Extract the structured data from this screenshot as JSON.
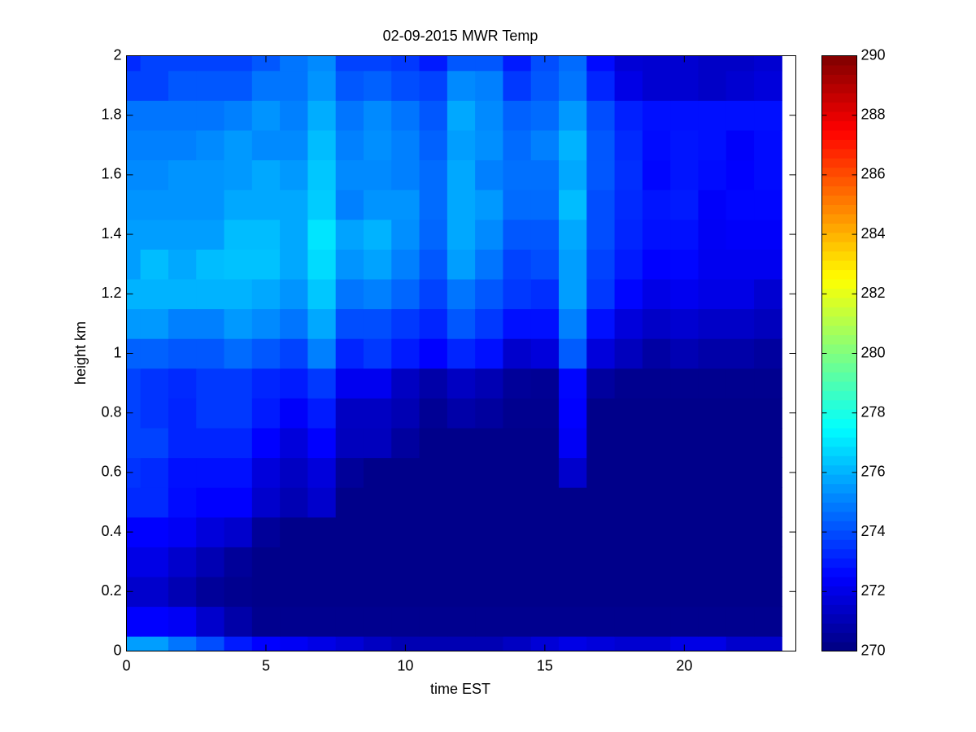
{
  "chart_data": {
    "type": "heatmap",
    "title": "02-09-2015 MWR Temp",
    "x_label": "time EST",
    "y_label": "height km",
    "colormap": "jet",
    "xlim": [
      0,
      24
    ],
    "ylim": [
      0,
      2
    ],
    "xticks": [
      0,
      5,
      10,
      15,
      20
    ],
    "yticks": [
      0,
      0.2,
      0.4,
      0.6,
      0.8,
      1,
      1.2,
      1.4,
      1.6,
      1.8,
      2
    ],
    "clim": [
      270,
      290
    ],
    "cticks": [
      270,
      272,
      274,
      276,
      278,
      280,
      282,
      284,
      286,
      288,
      290
    ],
    "x_edges": [
      0,
      0.5,
      1.5,
      2.5,
      3.5,
      4.5,
      5.5,
      6.5,
      7.5,
      8.5,
      9.5,
      10.5,
      11.5,
      12.5,
      13.5,
      14.5,
      15.5,
      16.5,
      17.5,
      18.5,
      19.5,
      20.5,
      21.5,
      22.5,
      23.5
    ],
    "y_edges": [
      0,
      0.05,
      0.15,
      0.25,
      0.35,
      0.45,
      0.55,
      0.65,
      0.75,
      0.85,
      0.95,
      1.05,
      1.15,
      1.25,
      1.35,
      1.45,
      1.55,
      1.65,
      1.75,
      1.85,
      1.95,
      2
    ],
    "z": [
      [
        275.6,
        275.6,
        274.8,
        274,
        273,
        272.5,
        272.3,
        272,
        271.7,
        271.3,
        271,
        271,
        271,
        271,
        271.3,
        271.7,
        272,
        271.8,
        271.6,
        271.6,
        272,
        272,
        271.5,
        271.5
      ],
      [
        272.5,
        272.5,
        272.3,
        271.5,
        270.8,
        270.3,
        270.3,
        270.3,
        270.3,
        270.3,
        270.3,
        270.3,
        270.3,
        270.3,
        270.3,
        270.3,
        270.3,
        270.3,
        270.3,
        270.3,
        270.3,
        270.3,
        270.3,
        270.3
      ],
      [
        271.5,
        271.5,
        271,
        270.5,
        270.3,
        270.2,
        270.2,
        270.2,
        270.2,
        270.2,
        270.2,
        270.2,
        270.2,
        270.2,
        270.2,
        270.2,
        270.2,
        270.2,
        270.2,
        270.2,
        270.2,
        270.2,
        270.2,
        270.2
      ],
      [
        272,
        272,
        271.5,
        271,
        270.5,
        270.2,
        270.2,
        270.2,
        270.2,
        270.2,
        270.2,
        270.2,
        270.2,
        270.2,
        270.2,
        270.2,
        270.2,
        270.2,
        270.2,
        270.2,
        270.2,
        270.2,
        270.2,
        270.2
      ],
      [
        272.5,
        272.5,
        272.3,
        271.8,
        271.5,
        270.5,
        270.2,
        270.2,
        270.2,
        270.2,
        270.2,
        270.2,
        270.2,
        270.2,
        270.2,
        270.2,
        270.2,
        270.2,
        270.2,
        270.2,
        270.2,
        270.2,
        270.2,
        270.2
      ],
      [
        273.3,
        273.3,
        272.7,
        272.5,
        272.5,
        271.5,
        271,
        271.5,
        270.2,
        270.2,
        270.2,
        270.2,
        270.2,
        270.2,
        270.2,
        270.2,
        270.2,
        270.2,
        270.2,
        270.2,
        270.2,
        270.2,
        270.2,
        270.2
      ],
      [
        273.5,
        273.3,
        272.8,
        272.8,
        272.8,
        271.8,
        271.3,
        271.8,
        270.5,
        270.2,
        270.2,
        270.2,
        270.2,
        270.2,
        270.2,
        270.2,
        271.5,
        270.2,
        270.2,
        270.2,
        270.2,
        270.2,
        270.2,
        270.2
      ],
      [
        273.8,
        273.8,
        273.2,
        273.2,
        273.2,
        272.5,
        271.8,
        272.5,
        271.2,
        271.2,
        270.6,
        270.2,
        270.2,
        270.2,
        270.2,
        270.2,
        272.3,
        270.2,
        270.2,
        270.2,
        270.2,
        270.2,
        270.2,
        270.2
      ],
      [
        273.8,
        273.5,
        273.2,
        273.6,
        273.6,
        273,
        272.4,
        273,
        271.3,
        271.3,
        271,
        270.4,
        270.8,
        270.6,
        270.3,
        270.3,
        272.5,
        270.2,
        270.2,
        270.2,
        270.2,
        270.2,
        270.2,
        270.2
      ],
      [
        273.8,
        273.5,
        273.3,
        273.6,
        273.6,
        273.2,
        273,
        273.6,
        272.2,
        272.2,
        271.3,
        270.8,
        271.3,
        271,
        270.5,
        270.4,
        272.6,
        270.6,
        270.3,
        270.3,
        270.3,
        270.3,
        270.3,
        270.3
      ],
      [
        274.4,
        274.4,
        274.2,
        274.2,
        274.6,
        274.2,
        273.8,
        275,
        273.2,
        273.6,
        273,
        272.5,
        273.2,
        272.8,
        271.5,
        271.8,
        274.3,
        271.8,
        271.2,
        270.7,
        271,
        270.8,
        270.8,
        270.6
      ],
      [
        275.5,
        275.5,
        275,
        275,
        275.5,
        275.2,
        274.8,
        275.8,
        274,
        274,
        273.6,
        273.2,
        274.2,
        273.6,
        272.8,
        272.8,
        275,
        272.8,
        271.8,
        271.4,
        271.6,
        271.4,
        271.4,
        271.2
      ],
      [
        276,
        276,
        276,
        276,
        276,
        275.8,
        275.4,
        276.4,
        274.8,
        275,
        274.5,
        273.8,
        274.8,
        274.2,
        273.6,
        273.4,
        275.6,
        273.6,
        272.6,
        272,
        272.2,
        272,
        272,
        271.6
      ],
      [
        275.6,
        276.2,
        275.8,
        276.2,
        276.3,
        276.3,
        275.8,
        276.8,
        275.4,
        275.7,
        275,
        274.2,
        275.6,
        274.8,
        273.8,
        274,
        275.6,
        273.8,
        273,
        272.5,
        272.6,
        272.2,
        272.2,
        272.2
      ],
      [
        275.6,
        275.6,
        275.6,
        275.6,
        276.2,
        276.2,
        275.8,
        277,
        275.7,
        276,
        275.3,
        274.5,
        275.8,
        275.2,
        274.2,
        274.2,
        275.8,
        274,
        273.2,
        272.8,
        272.8,
        272.3,
        272.4,
        272.4
      ],
      [
        275.4,
        275.4,
        275.4,
        275.4,
        275.8,
        275.8,
        275.8,
        276.5,
        275,
        275.4,
        275.4,
        274.6,
        275.8,
        275.5,
        274.6,
        274.6,
        276.2,
        274,
        273.3,
        272.9,
        273,
        272.4,
        272.6,
        272.6
      ],
      [
        275.2,
        275.2,
        275.4,
        275.4,
        275.5,
        275.8,
        275.5,
        276.4,
        275.2,
        275.2,
        275,
        274.6,
        275.8,
        275,
        274.7,
        274.7,
        275.8,
        274.2,
        273.4,
        272.6,
        272.9,
        272.7,
        272.5,
        272.7
      ],
      [
        275,
        275,
        275,
        275.2,
        275.5,
        275.2,
        275.2,
        276.2,
        275,
        275.3,
        275,
        274.4,
        275.6,
        275.3,
        274.6,
        275,
        276,
        274.2,
        273.3,
        272.7,
        272.9,
        272.8,
        272.4,
        272.7
      ],
      [
        274.8,
        274.8,
        274.8,
        274.8,
        275,
        275.4,
        275,
        275.9,
        274.8,
        275.2,
        274.8,
        274.2,
        275.8,
        275.2,
        274.4,
        274.6,
        275.5,
        274,
        273.1,
        272.8,
        272.8,
        272.8,
        272.8,
        272.8
      ],
      [
        273.8,
        273.8,
        274.2,
        274.2,
        274.2,
        274.8,
        274.8,
        275.4,
        274.2,
        274.4,
        274,
        273.8,
        275.2,
        275,
        273.6,
        274.2,
        274.8,
        273.2,
        272,
        271.6,
        271.6,
        271.4,
        271.6,
        271.8
      ],
      [
        273.3,
        273.8,
        273.8,
        273.8,
        273.8,
        274.2,
        274.8,
        275.2,
        273.8,
        273.8,
        273.6,
        273,
        274.2,
        274.2,
        273,
        274,
        274.6,
        272.7,
        271.7,
        271.6,
        271.6,
        271.4,
        271.4,
        271.6
      ]
    ]
  }
}
